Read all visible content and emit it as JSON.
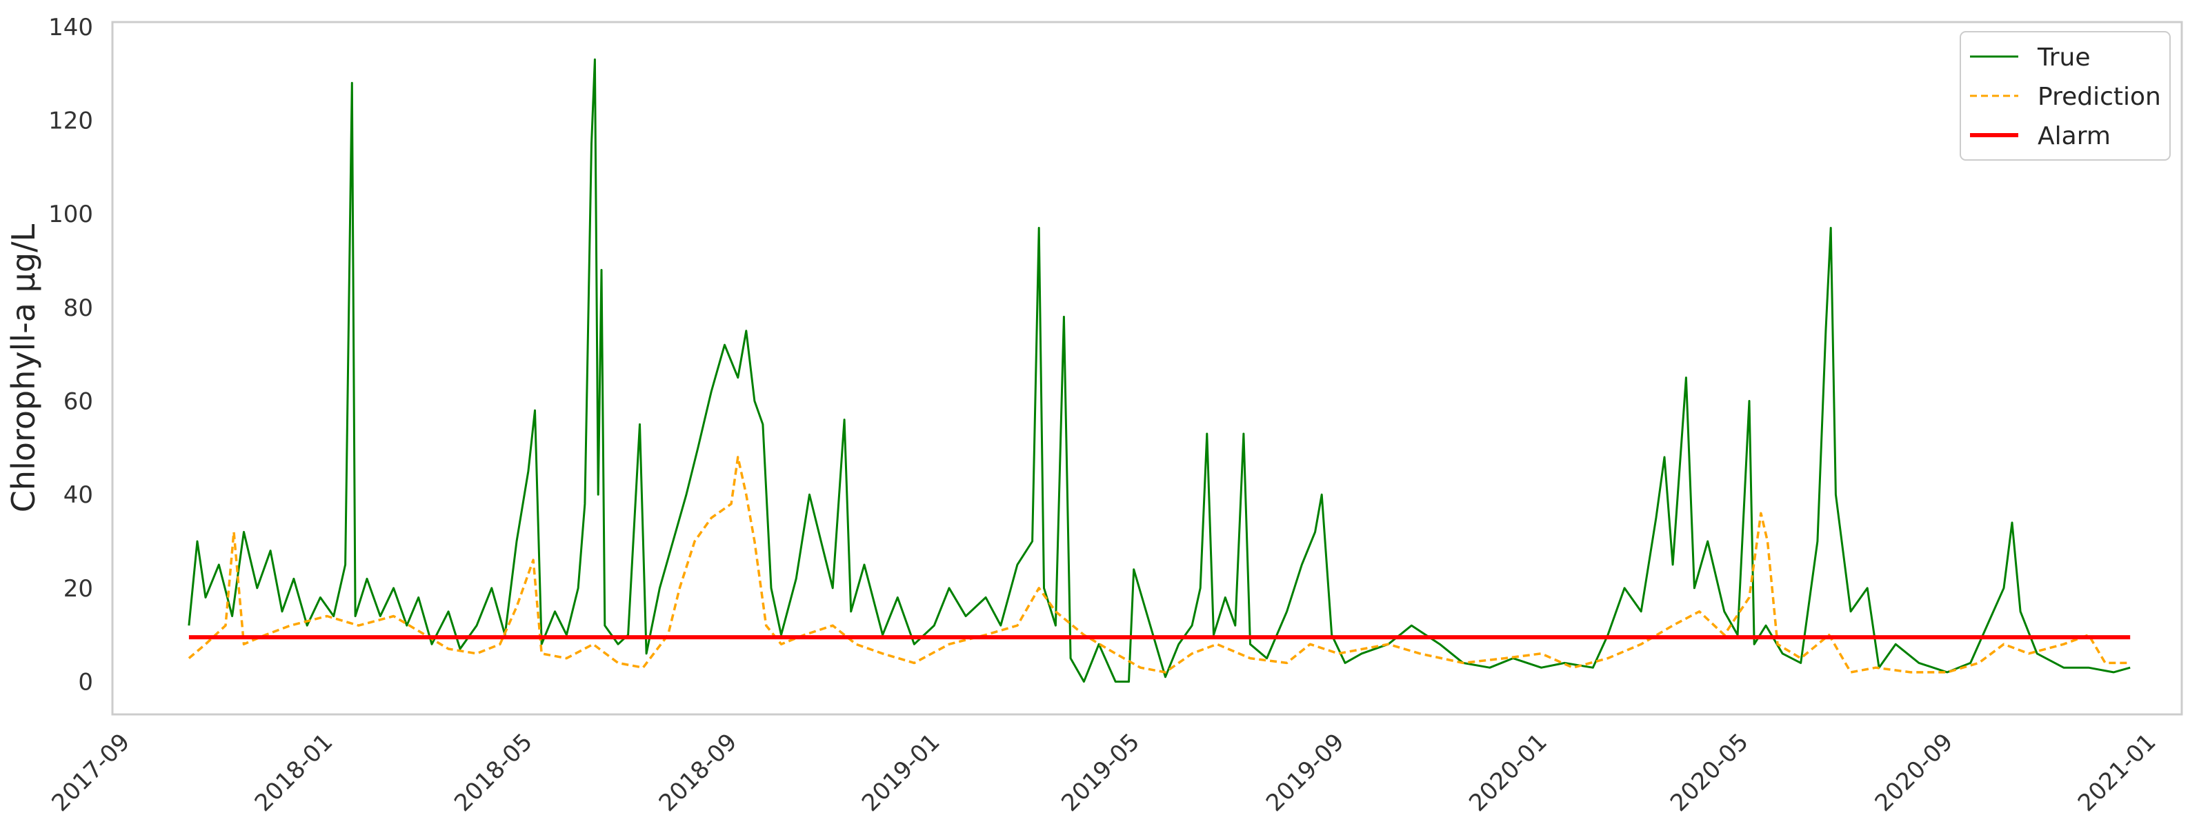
{
  "chart_data": {
    "type": "line",
    "title": "",
    "xlabel": "",
    "ylabel": "Chlorophyll-a µg/L",
    "xlim": [
      "2017-08-25",
      "2021-01-20"
    ],
    "ylim": [
      -7,
      141
    ],
    "grid": false,
    "legend_position": "top-right",
    "x_ticks": [
      "2017-09",
      "2018-01",
      "2018-05",
      "2018-09",
      "2019-01",
      "2019-05",
      "2019-09",
      "2020-01",
      "2020-05",
      "2020-09",
      "2021-01"
    ],
    "y_ticks": [
      0,
      20,
      40,
      60,
      80,
      100,
      120,
      140
    ],
    "series": [
      {
        "name": "True",
        "color": "#008000",
        "style": "solid",
        "points": [
          [
            "2017-10-10",
            12
          ],
          [
            "2017-10-15",
            30
          ],
          [
            "2017-10-20",
            18
          ],
          [
            "2017-10-28",
            25
          ],
          [
            "2017-11-05",
            14
          ],
          [
            "2017-11-12",
            32
          ],
          [
            "2017-11-20",
            20
          ],
          [
            "2017-11-28",
            28
          ],
          [
            "2017-12-05",
            15
          ],
          [
            "2017-12-12",
            22
          ],
          [
            "2017-12-20",
            12
          ],
          [
            "2017-12-28",
            18
          ],
          [
            "2018-01-05",
            14
          ],
          [
            "2018-01-12",
            25
          ],
          [
            "2018-01-16",
            128
          ],
          [
            "2018-01-18",
            14
          ],
          [
            "2018-01-25",
            22
          ],
          [
            "2018-02-02",
            14
          ],
          [
            "2018-02-10",
            20
          ],
          [
            "2018-02-18",
            12
          ],
          [
            "2018-02-25",
            18
          ],
          [
            "2018-03-05",
            8
          ],
          [
            "2018-03-15",
            15
          ],
          [
            "2018-03-22",
            7
          ],
          [
            "2018-04-01",
            12
          ],
          [
            "2018-04-10",
            20
          ],
          [
            "2018-04-18",
            10
          ],
          [
            "2018-04-25",
            30
          ],
          [
            "2018-05-02",
            45
          ],
          [
            "2018-05-06",
            58
          ],
          [
            "2018-05-10",
            8
          ],
          [
            "2018-05-18",
            15
          ],
          [
            "2018-05-25",
            10
          ],
          [
            "2018-06-01",
            20
          ],
          [
            "2018-06-05",
            38
          ],
          [
            "2018-06-09",
            115
          ],
          [
            "2018-06-11",
            133
          ],
          [
            "2018-06-13",
            40
          ],
          [
            "2018-06-15",
            88
          ],
          [
            "2018-06-17",
            12
          ],
          [
            "2018-06-25",
            8
          ],
          [
            "2018-07-01",
            10
          ],
          [
            "2018-07-08",
            55
          ],
          [
            "2018-07-12",
            6
          ],
          [
            "2018-07-20",
            20
          ],
          [
            "2018-07-28",
            30
          ],
          [
            "2018-08-05",
            40
          ],
          [
            "2018-08-12",
            50
          ],
          [
            "2018-08-20",
            62
          ],
          [
            "2018-08-28",
            72
          ],
          [
            "2018-09-05",
            65
          ],
          [
            "2018-09-10",
            75
          ],
          [
            "2018-09-15",
            60
          ],
          [
            "2018-09-20",
            55
          ],
          [
            "2018-09-25",
            20
          ],
          [
            "2018-10-01",
            10
          ],
          [
            "2018-10-10",
            22
          ],
          [
            "2018-10-18",
            40
          ],
          [
            "2018-10-25",
            30
          ],
          [
            "2018-11-01",
            20
          ],
          [
            "2018-11-08",
            56
          ],
          [
            "2018-11-12",
            15
          ],
          [
            "2018-11-20",
            25
          ],
          [
            "2018-12-01",
            10
          ],
          [
            "2018-12-10",
            18
          ],
          [
            "2018-12-20",
            8
          ],
          [
            "2019-01-01",
            12
          ],
          [
            "2019-01-10",
            20
          ],
          [
            "2019-01-20",
            14
          ],
          [
            "2019-02-01",
            18
          ],
          [
            "2019-02-10",
            12
          ],
          [
            "2019-02-20",
            25
          ],
          [
            "2019-03-01",
            30
          ],
          [
            "2019-03-05",
            97
          ],
          [
            "2019-03-08",
            20
          ],
          [
            "2019-03-15",
            12
          ],
          [
            "2019-03-20",
            78
          ],
          [
            "2019-03-24",
            5
          ],
          [
            "2019-04-01",
            0
          ],
          [
            "2019-04-10",
            8
          ],
          [
            "2019-04-20",
            0
          ],
          [
            "2019-04-28",
            0
          ],
          [
            "2019-05-01",
            24
          ],
          [
            "2019-05-20",
            1
          ],
          [
            "2019-05-28",
            8
          ],
          [
            "2019-06-05",
            12
          ],
          [
            "2019-06-10",
            20
          ],
          [
            "2019-06-14",
            53
          ],
          [
            "2019-06-18",
            10
          ],
          [
            "2019-06-25",
            18
          ],
          [
            "2019-07-01",
            12
          ],
          [
            "2019-07-06",
            53
          ],
          [
            "2019-07-10",
            8
          ],
          [
            "2019-07-20",
            5
          ],
          [
            "2019-08-01",
            15
          ],
          [
            "2019-08-10",
            25
          ],
          [
            "2019-08-18",
            32
          ],
          [
            "2019-08-22",
            40
          ],
          [
            "2019-08-28",
            10
          ],
          [
            "2019-09-05",
            4
          ],
          [
            "2019-09-15",
            6
          ],
          [
            "2019-10-01",
            8
          ],
          [
            "2019-10-15",
            12
          ],
          [
            "2019-11-01",
            8
          ],
          [
            "2019-11-15",
            4
          ],
          [
            "2019-12-01",
            3
          ],
          [
            "2019-12-15",
            5
          ],
          [
            "2020-01-01",
            3
          ],
          [
            "2020-01-15",
            4
          ],
          [
            "2020-02-01",
            3
          ],
          [
            "2020-02-10",
            10
          ],
          [
            "2020-02-20",
            20
          ],
          [
            "2020-03-01",
            15
          ],
          [
            "2020-03-10",
            35
          ],
          [
            "2020-03-15",
            48
          ],
          [
            "2020-03-20",
            25
          ],
          [
            "2020-03-28",
            65
          ],
          [
            "2020-04-02",
            20
          ],
          [
            "2020-04-10",
            30
          ],
          [
            "2020-04-20",
            15
          ],
          [
            "2020-04-28",
            10
          ],
          [
            "2020-05-05",
            60
          ],
          [
            "2020-05-08",
            8
          ],
          [
            "2020-05-15",
            12
          ],
          [
            "2020-05-25",
            6
          ],
          [
            "2020-06-05",
            4
          ],
          [
            "2020-06-15",
            30
          ],
          [
            "2020-06-20",
            75
          ],
          [
            "2020-06-23",
            97
          ],
          [
            "2020-06-26",
            40
          ],
          [
            "2020-07-05",
            15
          ],
          [
            "2020-07-15",
            20
          ],
          [
            "2020-07-22",
            3
          ],
          [
            "2020-08-01",
            8
          ],
          [
            "2020-08-15",
            4
          ],
          [
            "2020-09-01",
            2
          ],
          [
            "2020-09-15",
            4
          ],
          [
            "2020-09-25",
            12
          ],
          [
            "2020-10-05",
            20
          ],
          [
            "2020-10-10",
            34
          ],
          [
            "2020-10-15",
            15
          ],
          [
            "2020-10-25",
            6
          ],
          [
            "2020-11-10",
            3
          ],
          [
            "2020-11-25",
            3
          ],
          [
            "2020-12-10",
            2
          ],
          [
            "2020-12-20",
            3
          ]
        ]
      },
      {
        "name": "Prediction",
        "color": "#FFA500",
        "style": "dashed",
        "points": [
          [
            "2017-10-10",
            5
          ],
          [
            "2017-10-20",
            8
          ],
          [
            "2017-11-01",
            12
          ],
          [
            "2017-11-06",
            32
          ],
          [
            "2017-11-12",
            8
          ],
          [
            "2017-11-25",
            10
          ],
          [
            "2017-12-10",
            12
          ],
          [
            "2018-01-01",
            14
          ],
          [
            "2018-01-20",
            12
          ],
          [
            "2018-02-10",
            14
          ],
          [
            "2018-03-01",
            10
          ],
          [
            "2018-03-15",
            7
          ],
          [
            "2018-04-01",
            6
          ],
          [
            "2018-04-15",
            8
          ],
          [
            "2018-04-25",
            16
          ],
          [
            "2018-05-05",
            26
          ],
          [
            "2018-05-10",
            6
          ],
          [
            "2018-05-25",
            5
          ],
          [
            "2018-06-10",
            8
          ],
          [
            "2018-06-25",
            4
          ],
          [
            "2018-07-10",
            3
          ],
          [
            "2018-07-25",
            10
          ],
          [
            "2018-08-01",
            20
          ],
          [
            "2018-08-10",
            30
          ],
          [
            "2018-08-20",
            35
          ],
          [
            "2018-09-01",
            38
          ],
          [
            "2018-09-05",
            48
          ],
          [
            "2018-09-10",
            40
          ],
          [
            "2018-09-15",
            30
          ],
          [
            "2018-09-22",
            12
          ],
          [
            "2018-10-01",
            8
          ],
          [
            "2018-10-15",
            10
          ],
          [
            "2018-11-01",
            12
          ],
          [
            "2018-11-15",
            8
          ],
          [
            "2018-12-01",
            6
          ],
          [
            "2018-12-20",
            4
          ],
          [
            "2019-01-10",
            8
          ],
          [
            "2019-02-01",
            10
          ],
          [
            "2019-02-20",
            12
          ],
          [
            "2019-03-05",
            20
          ],
          [
            "2019-03-15",
            15
          ],
          [
            "2019-04-01",
            10
          ],
          [
            "2019-04-20",
            6
          ],
          [
            "2019-05-05",
            3
          ],
          [
            "2019-05-20",
            2
          ],
          [
            "2019-06-05",
            6
          ],
          [
            "2019-06-20",
            8
          ],
          [
            "2019-07-10",
            5
          ],
          [
            "2019-08-01",
            4
          ],
          [
            "2019-08-15",
            8
          ],
          [
            "2019-09-01",
            6
          ],
          [
            "2019-10-01",
            8
          ],
          [
            "2019-10-20",
            6
          ],
          [
            "2019-11-15",
            4
          ],
          [
            "2019-12-10",
            5
          ],
          [
            "2020-01-01",
            6
          ],
          [
            "2020-01-20",
            3
          ],
          [
            "2020-02-10",
            5
          ],
          [
            "2020-03-01",
            8
          ],
          [
            "2020-03-20",
            12
          ],
          [
            "2020-04-05",
            15
          ],
          [
            "2020-04-20",
            10
          ],
          [
            "2020-05-05",
            18
          ],
          [
            "2020-05-12",
            36
          ],
          [
            "2020-05-16",
            30
          ],
          [
            "2020-05-22",
            8
          ],
          [
            "2020-06-05",
            5
          ],
          [
            "2020-06-22",
            10
          ],
          [
            "2020-07-05",
            2
          ],
          [
            "2020-07-20",
            3
          ],
          [
            "2020-08-10",
            2
          ],
          [
            "2020-09-01",
            2
          ],
          [
            "2020-09-20",
            4
          ],
          [
            "2020-10-05",
            8
          ],
          [
            "2020-10-20",
            6
          ],
          [
            "2020-11-10",
            8
          ],
          [
            "2020-11-25",
            10
          ],
          [
            "2020-12-05",
            4
          ],
          [
            "2020-12-20",
            4
          ]
        ]
      },
      {
        "name": "Alarm",
        "color": "#FF0000",
        "style": "solid",
        "points": [
          [
            "2017-10-10",
            9.5
          ],
          [
            "2020-12-20",
            9.5
          ]
        ]
      }
    ]
  }
}
